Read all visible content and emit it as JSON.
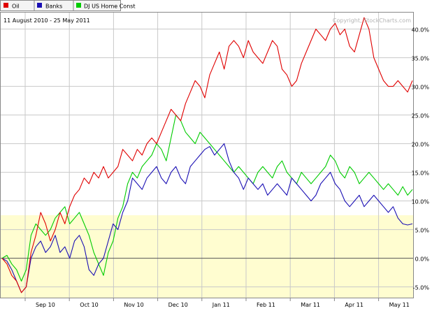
{
  "legend": [
    {
      "name": "Oil",
      "color": "#e00000"
    },
    {
      "name": "Banks",
      "color": "#1a0fb4"
    },
    {
      "name": "DJ US Home Const",
      "color": "#00cc00"
    }
  ],
  "date_range": "11 August 2010 - 25 May 2011",
  "copyright": "Copyright, StockCharts.com",
  "colors": {
    "background": "#ffffff",
    "shade": "#fffdd0",
    "grid": "#c8c8c8",
    "zero_line": "#555555",
    "frame": "#888888",
    "text": "#000000",
    "watermark": "#b4b4b4"
  },
  "chart_data": {
    "type": "line",
    "title": "",
    "x_tick_labels": [
      "Sep 10",
      "Oct 10",
      "Nov 10",
      "Dec 10",
      "Jan 11",
      "Feb 11",
      "Mar 11",
      "Apr 11",
      "May 11"
    ],
    "y_tick_labels": [
      "-5.0%",
      "0.0%",
      "5.0%",
      "10.0%",
      "15.0%",
      "20.0%",
      "25.0%",
      "30.0%",
      "35.0%",
      "40.0%"
    ],
    "y_ticks": [
      -5,
      0,
      5,
      10,
      15,
      20,
      25,
      30,
      35,
      40
    ],
    "ylim": [
      -7,
      43
    ],
    "shaded_band": [
      -7,
      7.5
    ],
    "grid": true,
    "legend_position": "top-left",
    "series": [
      {
        "name": "Oil",
        "color": "#e00000",
        "values": [
          0,
          -1,
          -3,
          -4,
          -6,
          -5,
          1,
          4,
          8,
          6,
          3,
          5,
          8,
          6,
          9,
          11,
          12,
          14,
          13,
          15,
          14,
          16,
          14,
          15,
          16,
          19,
          18,
          17,
          19,
          18,
          20,
          21,
          20,
          22,
          24,
          26,
          25,
          24,
          27,
          29,
          31,
          30,
          28,
          32,
          34,
          36,
          33,
          37,
          38,
          37,
          35,
          38,
          36,
          35,
          34,
          36,
          38,
          37,
          33,
          32,
          30,
          31,
          34,
          36,
          38,
          40,
          39,
          38,
          40,
          41,
          39,
          40,
          37,
          36,
          39,
          42,
          40,
          35,
          33,
          31,
          30,
          30,
          31,
          30,
          29,
          31
        ]
      },
      {
        "name": "Banks",
        "color": "#1a0fb4",
        "values": [
          0,
          -0.5,
          -2,
          -4,
          -6,
          -5,
          0,
          2,
          3,
          1,
          2,
          4,
          1,
          2,
          0,
          3,
          4,
          2,
          -2,
          -3,
          -1,
          0,
          3,
          6,
          5,
          8,
          10,
          14,
          13,
          12,
          14,
          15,
          16,
          14,
          13,
          15,
          16,
          14,
          13,
          16,
          17,
          18,
          19,
          19.5,
          18,
          19,
          20,
          17,
          15,
          14,
          12,
          14,
          13,
          12,
          13,
          11,
          12,
          13,
          12,
          11,
          14,
          13,
          12,
          11,
          10,
          11,
          13,
          14,
          15,
          13,
          12,
          10,
          9,
          10,
          11,
          9,
          10,
          11,
          10,
          9,
          8,
          9,
          7,
          6,
          5.8,
          6
        ]
      },
      {
        "name": "DJ US Home Const",
        "color": "#00cc00",
        "values": [
          0,
          0.5,
          -1,
          -2,
          -4,
          -2,
          4,
          6,
          5,
          4,
          5,
          7,
          8,
          9,
          6,
          7,
          8,
          6,
          4,
          1,
          -1,
          -3,
          1,
          3,
          7,
          9,
          13,
          15,
          14,
          16,
          17,
          18,
          20,
          19,
          17,
          21,
          25,
          24,
          22,
          21,
          20,
          22,
          21,
          20,
          19,
          18,
          17,
          16,
          15,
          16,
          15,
          14,
          13,
          15,
          16,
          15,
          14,
          16,
          17,
          15,
          14,
          13,
          15,
          14,
          13,
          14,
          15,
          16,
          18,
          17,
          15,
          14,
          16,
          15,
          13,
          14,
          15,
          14,
          13,
          12,
          13,
          12,
          11,
          12.5,
          11,
          12
        ]
      }
    ]
  }
}
